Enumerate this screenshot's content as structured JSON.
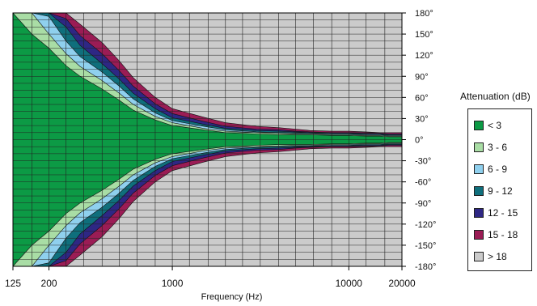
{
  "chart_data": {
    "type": "heatmap",
    "subtype": "filled contour (polar-frequency attenuation map)",
    "xlabel": "Frequency (Hz)",
    "ylabel": "",
    "x_scale": "log",
    "xlim": [
      125,
      20000
    ],
    "ylim": [
      -180,
      180
    ],
    "x_tick_labels": [
      {
        "value": 125,
        "label": "125"
      },
      {
        "value": 200,
        "label": "200"
      },
      {
        "value": 1000,
        "label": "1000"
      },
      {
        "value": 10000,
        "label": "10000"
      },
      {
        "value": 20000,
        "label": "20000"
      }
    ],
    "y_tick_labels": [
      {
        "value": 180,
        "label": "180°"
      },
      {
        "value": 150,
        "label": "150°"
      },
      {
        "value": 120,
        "label": "120°"
      },
      {
        "value": 90,
        "label": "90°"
      },
      {
        "value": 60,
        "label": "60°"
      },
      {
        "value": 30,
        "label": "30°"
      },
      {
        "value": 0,
        "label": "0°"
      },
      {
        "value": -30,
        "label": "-30°"
      },
      {
        "value": -60,
        "label": "-60°"
      },
      {
        "value": -90,
        "label": "-90°"
      },
      {
        "value": -120,
        "label": "-120°"
      },
      {
        "value": -150,
        "label": "-150°"
      },
      {
        "value": -180,
        "label": "-180°"
      }
    ],
    "grid_x_frequencies": [
      125,
      160,
      200,
      250,
      315,
      400,
      500,
      630,
      800,
      1000,
      1250,
      1600,
      2000,
      2500,
      3150,
      4000,
      5000,
      6300,
      8000,
      10000,
      12500,
      16000,
      20000
    ],
    "grid_y_step": 10,
    "legend": {
      "title": "Attenuation (dB)",
      "placement": "right",
      "entries": [
        {
          "label": "< 3",
          "color": "#0c9a45"
        },
        {
          "label": "3 - 6",
          "color": "#a9dda5"
        },
        {
          "label": "6 - 9",
          "color": "#8fd0ee"
        },
        {
          "label": "9 - 12",
          "color": "#0f6f7c"
        },
        {
          "label": "12 - 15",
          "color": "#2e2784"
        },
        {
          "label": "15 - 18",
          "color": "#9b1c55"
        },
        {
          "label": "> 18",
          "color": "#cbcbcb"
        }
      ]
    },
    "level_widths_deg": {
      "description": "approximate half-width (degrees from 0°) of each attenuation-level boundary at each frequency; 180 = whole range",
      "frequencies": [
        125,
        160,
        200,
        250,
        300,
        400,
        500,
        600,
        800,
        1000,
        1500,
        2000,
        3000,
        4000,
        5000,
        6000,
        8000,
        10000,
        12500,
        15000,
        17000,
        20000
      ],
      "lt3": [
        180,
        150,
        130,
        105,
        90,
        72,
        56,
        42,
        28,
        20,
        14,
        10,
        8,
        7,
        7,
        7,
        6,
        6,
        5,
        5,
        4,
        4
      ],
      "lt6": [
        180,
        180,
        150,
        122,
        104,
        84,
        66,
        50,
        33,
        24,
        16,
        12,
        10,
        9,
        8,
        8,
        7,
        7,
        6,
        6,
        5,
        5
      ],
      "lt9": [
        180,
        180,
        175,
        140,
        118,
        96,
        76,
        58,
        38,
        27,
        19,
        14,
        11,
        10,
        9,
        9,
        8,
        8,
        7,
        7,
        6,
        6
      ],
      "lt12": [
        180,
        180,
        180,
        160,
        134,
        108,
        86,
        66,
        44,
        31,
        22,
        16,
        13,
        12,
        11,
        10,
        9,
        9,
        8,
        8,
        7,
        7
      ],
      "lt15": [
        180,
        180,
        180,
        172,
        148,
        122,
        98,
        76,
        51,
        37,
        26,
        19,
        15,
        14,
        12,
        11,
        10,
        10,
        9,
        9,
        8,
        8
      ],
      "lt18": [
        180,
        180,
        180,
        180,
        164,
        138,
        112,
        88,
        60,
        44,
        32,
        24,
        19,
        17,
        15,
        13,
        12,
        12,
        11,
        10,
        10,
        10
      ]
    }
  }
}
